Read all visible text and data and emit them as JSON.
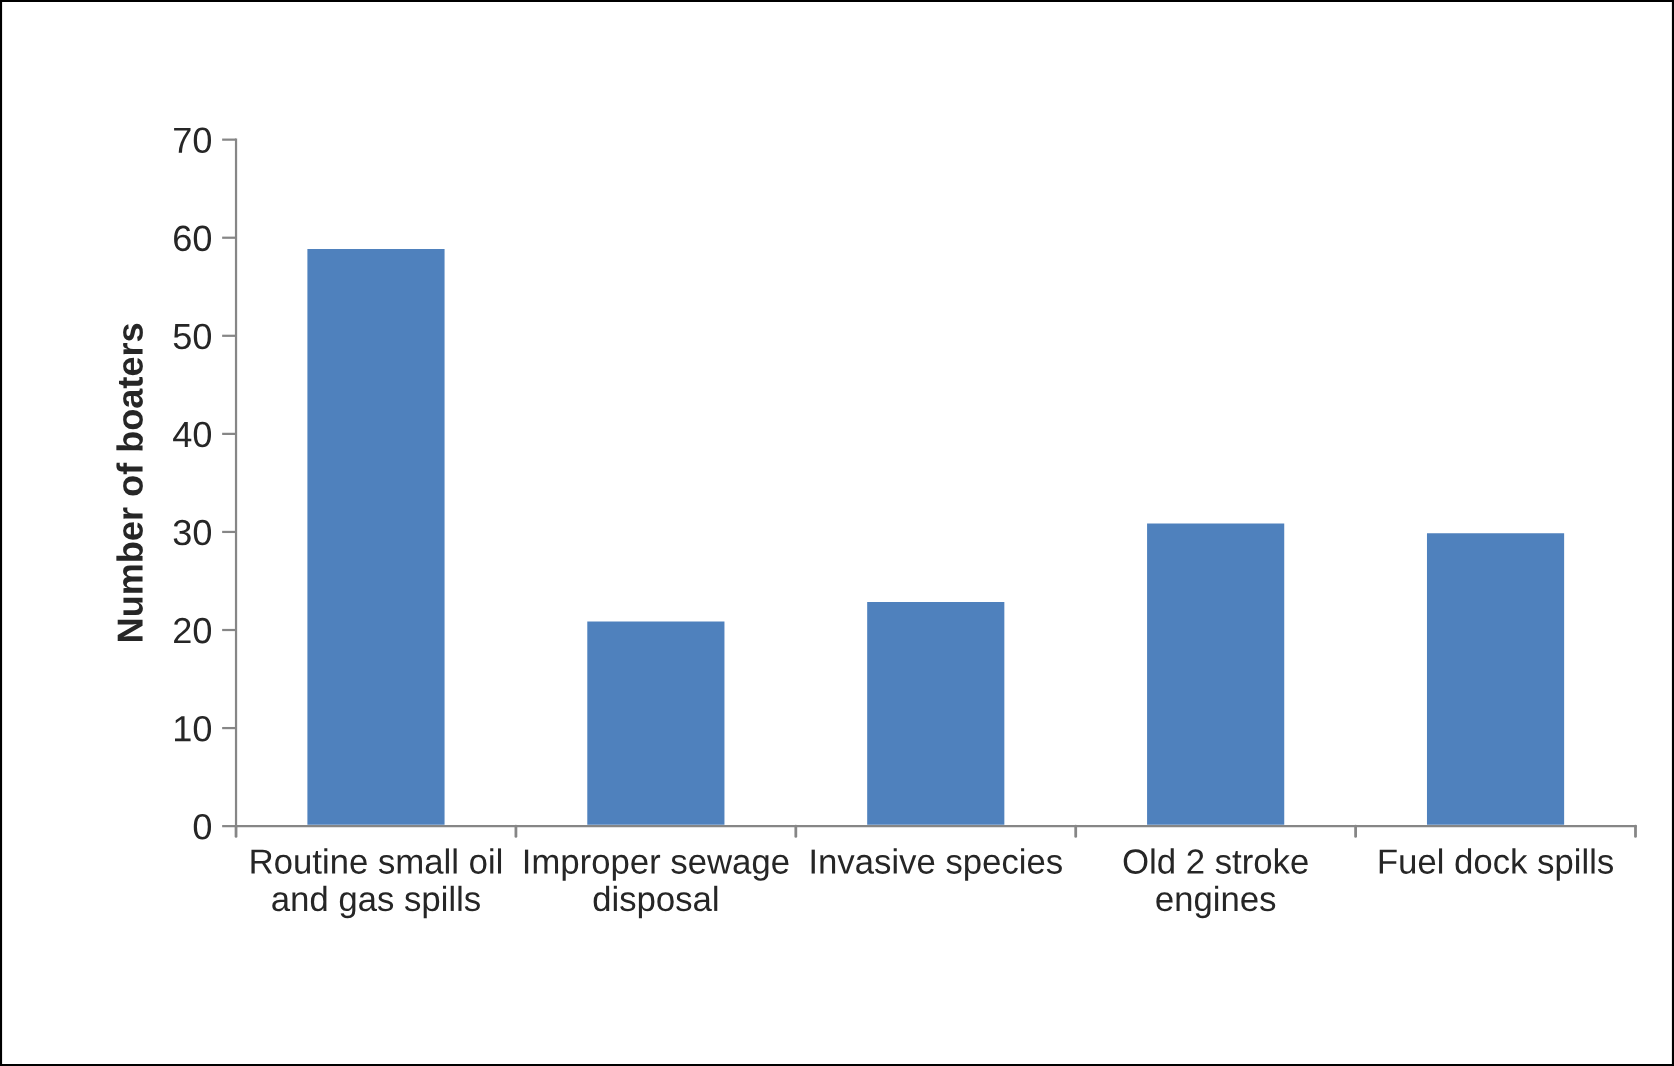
{
  "chart_data": {
    "type": "bar",
    "ylabel": "Number of boaters",
    "categories": [
      "Routine small oil and gas spills",
      "Improper sewage disposal",
      "Invasive species",
      "Old 2 stroke engines",
      "Fuel dock spills"
    ],
    "values": [
      59,
      21,
      23,
      31,
      30
    ],
    "color": "#4f81bd",
    "ylim": [
      0,
      70
    ],
    "yticks": [
      0,
      10,
      20,
      30,
      40,
      50,
      60,
      70
    ],
    "grid": false,
    "legend": false
  }
}
